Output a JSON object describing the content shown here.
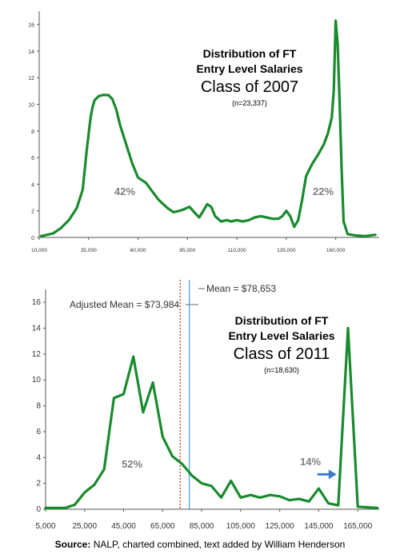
{
  "chart_data": [
    {
      "type": "line",
      "annotation_lines": [
        "Distribution of FT",
        "Entry Level Salaries",
        "Class of 2007",
        "(n=23,337)"
      ],
      "x_ticks": [
        "10,000",
        "35,000",
        "60,000",
        "85,000",
        "110,000",
        "135,000",
        "160,000"
      ],
      "y_ticks": [
        "0",
        "2",
        "4",
        "6",
        "8",
        "10",
        "12",
        "14",
        "16"
      ],
      "xlim": [
        10000,
        182000
      ],
      "ylim": [
        0,
        17
      ],
      "grid": false,
      "series_color": "#1a8a2e",
      "x": [
        11000,
        17000,
        21000,
        25000,
        29000,
        32000,
        34000,
        36000,
        37000,
        38000,
        40000,
        42000,
        45000,
        47000,
        49000,
        51000,
        54000,
        57000,
        60000,
        64000,
        67000,
        70000,
        72000,
        75000,
        78000,
        81000,
        83000,
        86000,
        89000,
        91000,
        93000,
        95000,
        97000,
        99000,
        102000,
        105000,
        107000,
        110000,
        113000,
        116000,
        119000,
        122000,
        125000,
        128000,
        131000,
        133000,
        135000,
        137000,
        139000,
        141000,
        143000,
        145000,
        148000,
        151000,
        154000,
        156000,
        158000,
        159000,
        160000,
        161000,
        162000,
        163000,
        164000,
        166000,
        170000,
        175000,
        180000
      ],
      "values": [
        0.1,
        0.3,
        0.7,
        1.3,
        2.2,
        3.6,
        6.5,
        9.0,
        9.8,
        10.3,
        10.6,
        10.7,
        10.7,
        10.4,
        9.6,
        8.4,
        7.0,
        5.6,
        4.5,
        4.1,
        3.5,
        2.9,
        2.6,
        2.2,
        1.9,
        2.0,
        2.1,
        2.3,
        1.8,
        1.5,
        2.0,
        2.5,
        2.3,
        1.6,
        1.2,
        1.3,
        1.2,
        1.3,
        1.2,
        1.3,
        1.5,
        1.6,
        1.5,
        1.4,
        1.4,
        1.6,
        2.0,
        1.6,
        0.8,
        1.3,
        2.8,
        4.6,
        5.5,
        6.2,
        7.0,
        7.8,
        9.0,
        11.0,
        16.3,
        14.5,
        10.0,
        5.0,
        1.2,
        0.25,
        0.15,
        0.1,
        0.2
      ],
      "labels": [
        "42%",
        "22%"
      ]
    },
    {
      "type": "line",
      "annotation_lines": [
        "Distribution of FT",
        "Entry Level Salaries",
        "Class of 2011",
        "(n=18,630)"
      ],
      "x_ticks": [
        "5,000",
        "25,000",
        "45,000",
        "65,000",
        "85,000",
        "105,000",
        "125,000",
        "145,000",
        "165,000"
      ],
      "y_ticks": [
        "0",
        "2",
        "4",
        "6",
        "8",
        "10",
        "12",
        "14",
        "16"
      ],
      "xlim": [
        5000,
        176000
      ],
      "ylim": [
        0,
        17
      ],
      "grid": false,
      "series_color": "#1a8a2e",
      "x": [
        5000,
        15000,
        20000,
        25000,
        30000,
        35000,
        40000,
        45000,
        50000,
        55000,
        60000,
        65000,
        70000,
        75000,
        80000,
        85000,
        90000,
        95000,
        100000,
        105000,
        110000,
        115000,
        120000,
        125000,
        130000,
        135000,
        140000,
        145000,
        150000,
        155000,
        160000,
        165000,
        170000,
        175000
      ],
      "values": [
        0.1,
        0.1,
        0.35,
        1.3,
        1.9,
        3.1,
        8.6,
        8.9,
        11.8,
        7.5,
        9.8,
        5.6,
        4.1,
        3.5,
        2.6,
        2.0,
        1.8,
        0.9,
        2.2,
        0.9,
        1.1,
        0.9,
        1.1,
        1.0,
        0.7,
        0.8,
        0.6,
        1.6,
        0.45,
        0.3,
        14.0,
        0.2,
        0.15,
        0.1
      ],
      "reference_lines": [
        {
          "label": "Adjusted Mean = $73,984",
          "x": 73984,
          "color": "#c0392b",
          "style": "dashed"
        },
        {
          "label": "Mean = $78,653",
          "x": 78653,
          "color": "#4da3e0",
          "style": "solid"
        }
      ],
      "arrow_color": "#3d7cc9",
      "labels": [
        "52%",
        "14%"
      ]
    }
  ],
  "source": {
    "prefix": "Source:",
    "text": " NALP, charted combined, text added by William Henderson"
  }
}
